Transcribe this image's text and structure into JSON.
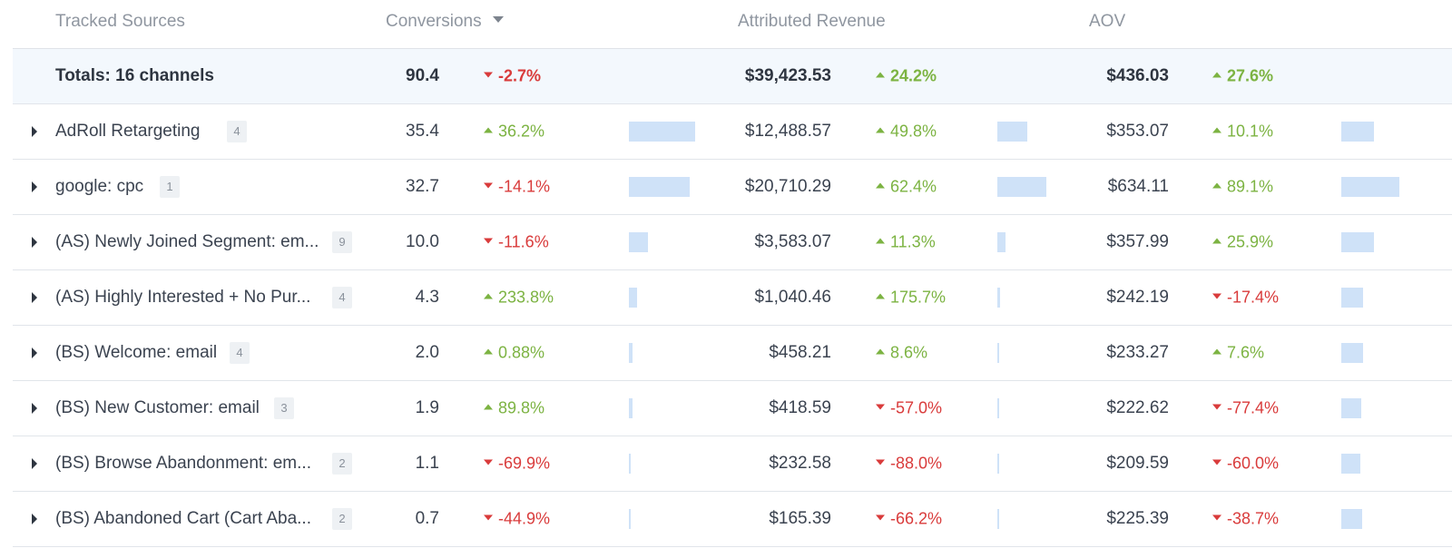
{
  "header": {
    "sources": "Tracked Sources",
    "conversions": "Conversions",
    "revenue": "Attributed Revenue",
    "aov": "AOV"
  },
  "colors": {
    "positive": "#7cb342",
    "negative": "#d93b3b",
    "bar": "#cfe2f8",
    "totals_bg": "#f3f8fd"
  },
  "totals": {
    "label": "Totals: 16 channels",
    "conversions": "90.4",
    "conversions_delta": "-2.7%",
    "conversions_dir": "down",
    "revenue": "$39,423.53",
    "revenue_delta": "24.2%",
    "revenue_dir": "up",
    "aov": "$436.03",
    "aov_delta": "27.6%",
    "aov_dir": "up"
  },
  "rows": [
    {
      "name": "AdRoll Retargeting",
      "badge": "4",
      "conversions": "35.4",
      "conversions_delta": "36.2%",
      "conversions_dir": "up",
      "conversions_share": 35.4,
      "revenue": "$12,488.57",
      "revenue_delta": "49.8%",
      "revenue_dir": "up",
      "revenue_share": 12488.57,
      "aov": "$353.07",
      "aov_delta": "10.1%",
      "aov_dir": "up",
      "aov_share": 353.07
    },
    {
      "name": "google: cpc",
      "badge": "1",
      "conversions": "32.7",
      "conversions_delta": "-14.1%",
      "conversions_dir": "down",
      "conversions_share": 32.7,
      "revenue": "$20,710.29",
      "revenue_delta": "62.4%",
      "revenue_dir": "up",
      "revenue_share": 20710.29,
      "aov": "$634.11",
      "aov_delta": "89.1%",
      "aov_dir": "up",
      "aov_share": 634.11
    },
    {
      "name": "(AS) Newly Joined Segment: em...",
      "badge": "9",
      "conversions": "10.0",
      "conversions_delta": "-11.6%",
      "conversions_dir": "down",
      "conversions_share": 10.0,
      "revenue": "$3,583.07",
      "revenue_delta": "11.3%",
      "revenue_dir": "up",
      "revenue_share": 3583.07,
      "aov": "$357.99",
      "aov_delta": "25.9%",
      "aov_dir": "up",
      "aov_share": 357.99
    },
    {
      "name": "(AS) Highly Interested + No Pur...",
      "badge": "4",
      "conversions": "4.3",
      "conversions_delta": "233.8%",
      "conversions_dir": "up",
      "conversions_share": 4.3,
      "revenue": "$1,040.46",
      "revenue_delta": "175.7%",
      "revenue_dir": "up",
      "revenue_share": 1040.46,
      "aov": "$242.19",
      "aov_delta": "-17.4%",
      "aov_dir": "down",
      "aov_share": 242.19
    },
    {
      "name": "(BS) Welcome: email",
      "badge": "4",
      "conversions": "2.0",
      "conversions_delta": "0.88%",
      "conversions_dir": "up",
      "conversions_share": 2.0,
      "revenue": "$458.21",
      "revenue_delta": "8.6%",
      "revenue_dir": "up",
      "revenue_share": 458.21,
      "aov": "$233.27",
      "aov_delta": "7.6%",
      "aov_dir": "up",
      "aov_share": 233.27
    },
    {
      "name": "(BS) New Customer: email",
      "badge": "3",
      "conversions": "1.9",
      "conversions_delta": "89.8%",
      "conversions_dir": "up",
      "conversions_share": 1.9,
      "revenue": "$418.59",
      "revenue_delta": "-57.0%",
      "revenue_dir": "down",
      "revenue_share": 418.59,
      "aov": "$222.62",
      "aov_delta": "-77.4%",
      "aov_dir": "down",
      "aov_share": 222.62
    },
    {
      "name": "(BS) Browse Abandonment: em...",
      "badge": "2",
      "conversions": "1.1",
      "conversions_delta": "-69.9%",
      "conversions_dir": "down",
      "conversions_share": 1.1,
      "revenue": "$232.58",
      "revenue_delta": "-88.0%",
      "revenue_dir": "down",
      "revenue_share": 232.58,
      "aov": "$209.59",
      "aov_delta": "-60.0%",
      "aov_dir": "down",
      "aov_share": 209.59
    },
    {
      "name": "(BS) Abandoned Cart (Cart Aba...",
      "badge": "2",
      "conversions": "0.7",
      "conversions_delta": "-44.9%",
      "conversions_dir": "down",
      "conversions_share": 0.7,
      "revenue": "$165.39",
      "revenue_delta": "-66.2%",
      "revenue_dir": "down",
      "revenue_share": 165.39,
      "aov": "$225.39",
      "aov_delta": "-38.7%",
      "aov_dir": "down",
      "aov_share": 225.39
    }
  ]
}
